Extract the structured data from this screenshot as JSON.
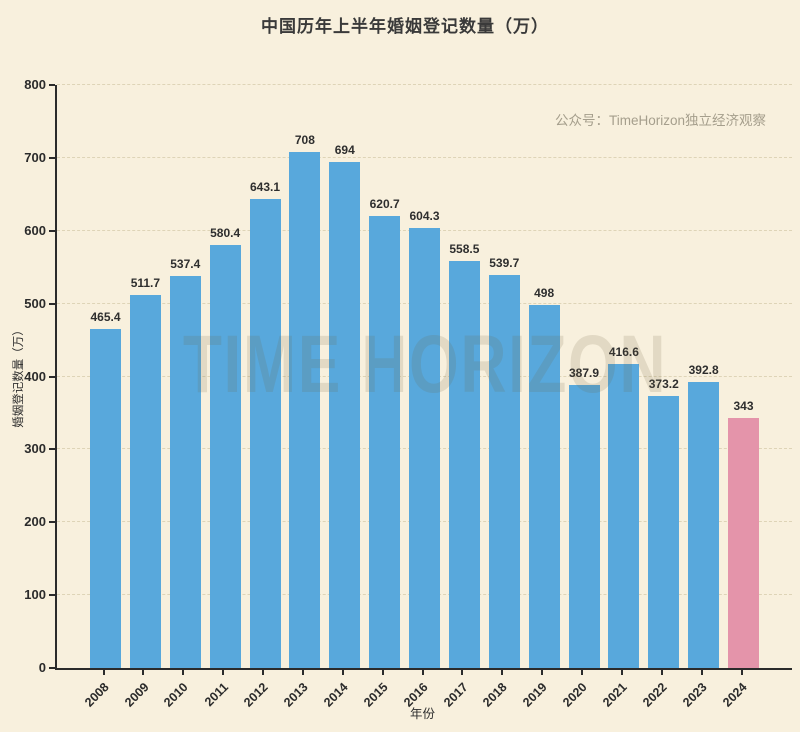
{
  "page": {
    "title": "中国历年上半年婚姻登记数量（万）",
    "annotation": "公众号：TimeHorizon独立经济观察",
    "watermark": "TIME HORIZON"
  },
  "chart_data": {
    "type": "bar",
    "title": "中国历年上半年婚姻登记数量（万）",
    "xlabel": "年份",
    "ylabel": "婚姻登记数量（万）",
    "categories": [
      "2008",
      "2009",
      "2010",
      "2011",
      "2012",
      "2013",
      "2014",
      "2015",
      "2016",
      "2017",
      "2018",
      "2019",
      "2020",
      "2021",
      "2022",
      "2023",
      "2024"
    ],
    "values": [
      465.4,
      511.7,
      537.4,
      580.4,
      643.1,
      708,
      694,
      620.7,
      604.3,
      558.5,
      539.7,
      498,
      387.9,
      416.6,
      373.2,
      392.8,
      343
    ],
    "value_labels": [
      "465.4",
      "511.7",
      "537.4",
      "580.4",
      "643.1",
      "708",
      "694",
      "620.7",
      "604.3",
      "558.5",
      "539.7",
      "498",
      "387.9",
      "416.6",
      "373.2",
      "392.8",
      "343"
    ],
    "ylim": [
      0,
      800
    ],
    "yticks": [
      0,
      100,
      200,
      300,
      400,
      500,
      600,
      700,
      800
    ],
    "grid": "horizontal-dashed",
    "legend": "none",
    "annotation": "公众号：TimeHorizon独立经济观察",
    "watermark": "TIME HORIZON",
    "colors": {
      "background": "#F8F0DD",
      "bar_default": "#58A8DC",
      "bar_highlight": "#E494AA",
      "axis": "#2B2B2B",
      "label_text": "#2E2E2E",
      "annotation_text": "#A59E8C"
    },
    "highlight_index": 16
  }
}
